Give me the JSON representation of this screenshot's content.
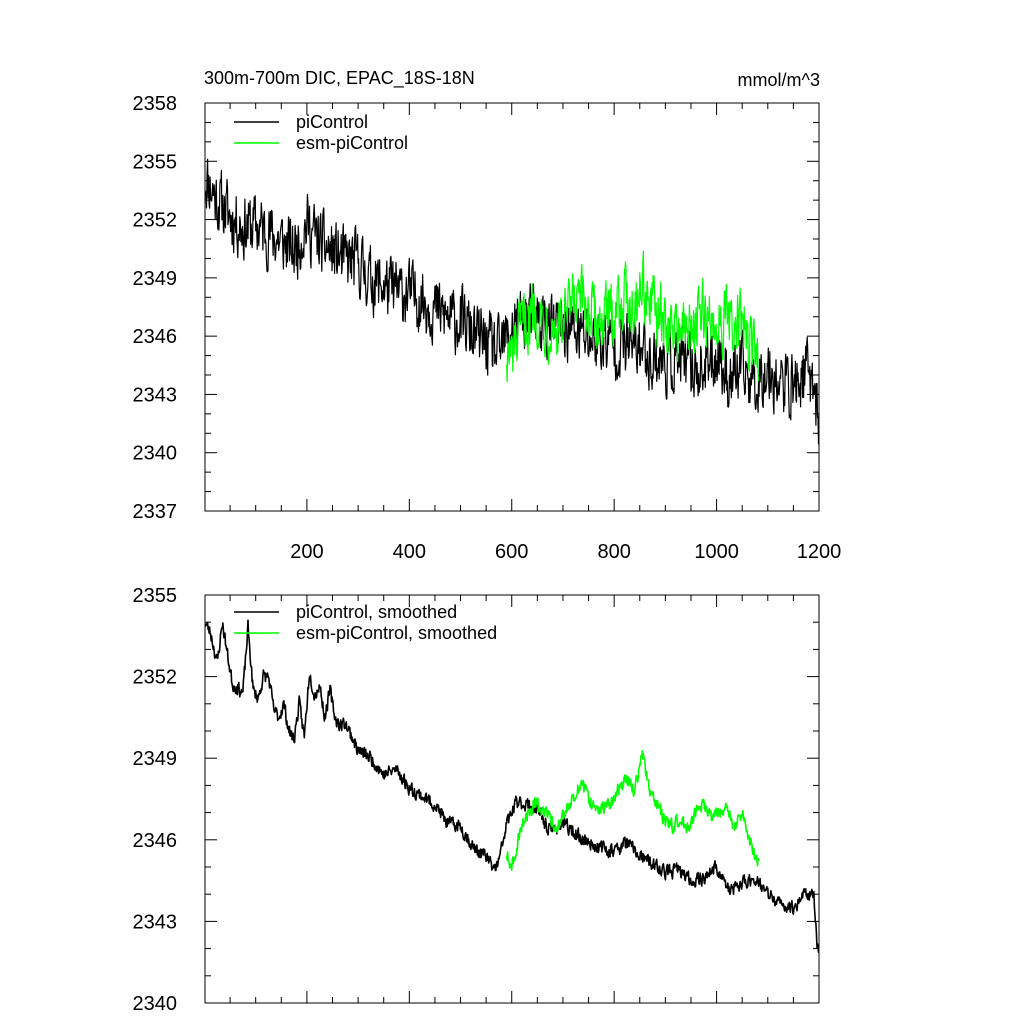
{
  "figure": {
    "title": "300m-700m DIC, EPAC_18S-18N",
    "units": "mmol/m^3"
  },
  "colors": {
    "piControl": "#000000",
    "esm_piControl": "#00ff00",
    "axis": "#000000",
    "background": "#ffffff"
  },
  "chart_data": [
    {
      "type": "line",
      "title": "300m-700m DIC, EPAC_18S-18N",
      "units_label": "mmol/m^3",
      "xlabel": "",
      "ylabel": "",
      "xlim": [
        1,
        1200
      ],
      "ylim": [
        2337,
        2358
      ],
      "xticks": [
        200,
        400,
        600,
        800,
        1000,
        1200
      ],
      "xtick_labels": [
        "200",
        "400",
        "600",
        "800",
        "1000",
        "1200"
      ],
      "yticks": [
        2337,
        2340,
        2343,
        2346,
        2349,
        2352,
        2355,
        2358
      ],
      "ytick_labels": [
        "2337",
        "2340",
        "2343",
        "2346",
        "2349",
        "2352",
        "2355",
        "2358"
      ],
      "grid": false,
      "legend_position": "top-left",
      "series": [
        {
          "name": "piControl",
          "color": "#000000",
          "x": [
            1,
            25,
            50,
            75,
            100,
            125,
            150,
            175,
            200,
            225,
            250,
            275,
            300,
            325,
            350,
            375,
            400,
            425,
            450,
            475,
            500,
            525,
            550,
            575,
            600,
            625,
            650,
            675,
            700,
            725,
            750,
            775,
            800,
            825,
            850,
            875,
            900,
            925,
            950,
            975,
            1000,
            1025,
            1050,
            1075,
            1100,
            1125,
            1150,
            1175,
            1190,
            1200
          ],
          "y": [
            2354.3,
            2353.0,
            2352.2,
            2351.6,
            2351.7,
            2351.3,
            2350.9,
            2350.4,
            2351.8,
            2350.8,
            2350.3,
            2349.9,
            2349.8,
            2348.9,
            2348.6,
            2348.3,
            2348.2,
            2347.9,
            2347.4,
            2346.9,
            2346.8,
            2346.1,
            2345.6,
            2345.1,
            2346.4,
            2347.1,
            2346.9,
            2346.4,
            2346.5,
            2346.2,
            2345.9,
            2345.8,
            2345.5,
            2345.6,
            2345.4,
            2344.9,
            2344.6,
            2344.8,
            2344.4,
            2344.3,
            2345.1,
            2343.8,
            2344.2,
            2343.6,
            2344.4,
            2343.5,
            2343.4,
            2344.1,
            2343.8,
            2341.3
          ]
        },
        {
          "name": "esm-piControl",
          "color": "#00ff00",
          "x": [
            590,
            600,
            615,
            630,
            645,
            660,
            675,
            690,
            705,
            720,
            735,
            750,
            765,
            780,
            795,
            810,
            825,
            840,
            855,
            870,
            885,
            900,
            915,
            930,
            945,
            960,
            975,
            990,
            1005,
            1020,
            1035,
            1050,
            1065,
            1075,
            1082
          ],
          "y": [
            2345.2,
            2344.8,
            2346.2,
            2346.8,
            2347.4,
            2346.9,
            2346.6,
            2346.3,
            2346.9,
            2347.5,
            2347.8,
            2347.4,
            2346.7,
            2346.9,
            2347.2,
            2347.8,
            2348.2,
            2347.6,
            2348.9,
            2347.5,
            2347.2,
            2346.4,
            2346.3,
            2346.6,
            2346.1,
            2346.9,
            2347.1,
            2346.6,
            2346.8,
            2346.9,
            2346.2,
            2346.8,
            2345.6,
            2345.2,
            2344.9
          ]
        }
      ]
    },
    {
      "type": "line",
      "title": "",
      "xlabel": "",
      "ylabel": "",
      "xlim": [
        1,
        1200
      ],
      "ylim": [
        2340,
        2355
      ],
      "xticks": [
        200,
        400,
        600,
        800,
        1000,
        1200
      ],
      "xtick_labels": [],
      "yticks": [
        2340,
        2343,
        2346,
        2349,
        2352,
        2355
      ],
      "ytick_labels": [
        "2340",
        "2343",
        "2346",
        "2349",
        "2352",
        "2355"
      ],
      "grid": false,
      "legend_position": "top-left",
      "series": [
        {
          "name": "piControl, smoothed",
          "color": "#000000",
          "x": [
            1,
            12,
            25,
            35,
            45,
            55,
            65,
            75,
            85,
            95,
            105,
            115,
            125,
            135,
            145,
            155,
            165,
            175,
            185,
            195,
            205,
            215,
            225,
            235,
            245,
            255,
            265,
            275,
            285,
            300,
            325,
            350,
            375,
            400,
            425,
            450,
            475,
            500,
            525,
            550,
            565,
            575,
            590,
            610,
            630,
            650,
            675,
            700,
            725,
            750,
            775,
            800,
            825,
            850,
            875,
            900,
            925,
            950,
            975,
            1000,
            1025,
            1050,
            1075,
            1100,
            1125,
            1150,
            1175,
            1190,
            1196,
            1200
          ],
          "y": [
            2354.0,
            2353.6,
            2352.5,
            2354.0,
            2352.8,
            2351.7,
            2351.6,
            2351.4,
            2353.8,
            2351.5,
            2351.2,
            2352.0,
            2352.0,
            2350.8,
            2350.5,
            2351.0,
            2350.0,
            2349.7,
            2351.0,
            2349.8,
            2352.2,
            2351.3,
            2351.7,
            2350.5,
            2351.5,
            2350.5,
            2350.2,
            2350.3,
            2349.9,
            2349.3,
            2349.0,
            2348.4,
            2348.6,
            2347.9,
            2347.6,
            2347.3,
            2346.6,
            2346.5,
            2345.7,
            2345.4,
            2344.9,
            2345.2,
            2346.6,
            2347.4,
            2347.3,
            2347.1,
            2346.3,
            2346.6,
            2346.2,
            2345.9,
            2345.7,
            2345.6,
            2345.9,
            2345.4,
            2345.1,
            2344.8,
            2344.9,
            2344.5,
            2344.6,
            2345.0,
            2344.1,
            2344.4,
            2344.6,
            2344.0,
            2343.6,
            2343.5,
            2344.1,
            2343.9,
            2342.2,
            2341.7
          ]
        },
        {
          "name": "esm-piControl, smoothed",
          "color": "#00ff00",
          "x": [
            590,
            600,
            615,
            630,
            645,
            660,
            675,
            690,
            705,
            720,
            735,
            750,
            765,
            780,
            795,
            810,
            825,
            840,
            855,
            870,
            885,
            900,
            915,
            930,
            945,
            960,
            975,
            990,
            1005,
            1020,
            1035,
            1050,
            1065,
            1075,
            1082
          ],
          "y": [
            2345.5,
            2345.0,
            2346.2,
            2346.9,
            2347.4,
            2347.1,
            2346.8,
            2346.4,
            2347.1,
            2347.6,
            2348.0,
            2347.6,
            2347.0,
            2347.2,
            2347.4,
            2347.9,
            2348.2,
            2347.8,
            2349.2,
            2347.7,
            2347.3,
            2346.6,
            2346.5,
            2346.8,
            2346.3,
            2347.1,
            2347.3,
            2346.8,
            2347.0,
            2347.1,
            2346.4,
            2347.0,
            2345.9,
            2345.4,
            2345.2
          ]
        }
      ]
    }
  ]
}
